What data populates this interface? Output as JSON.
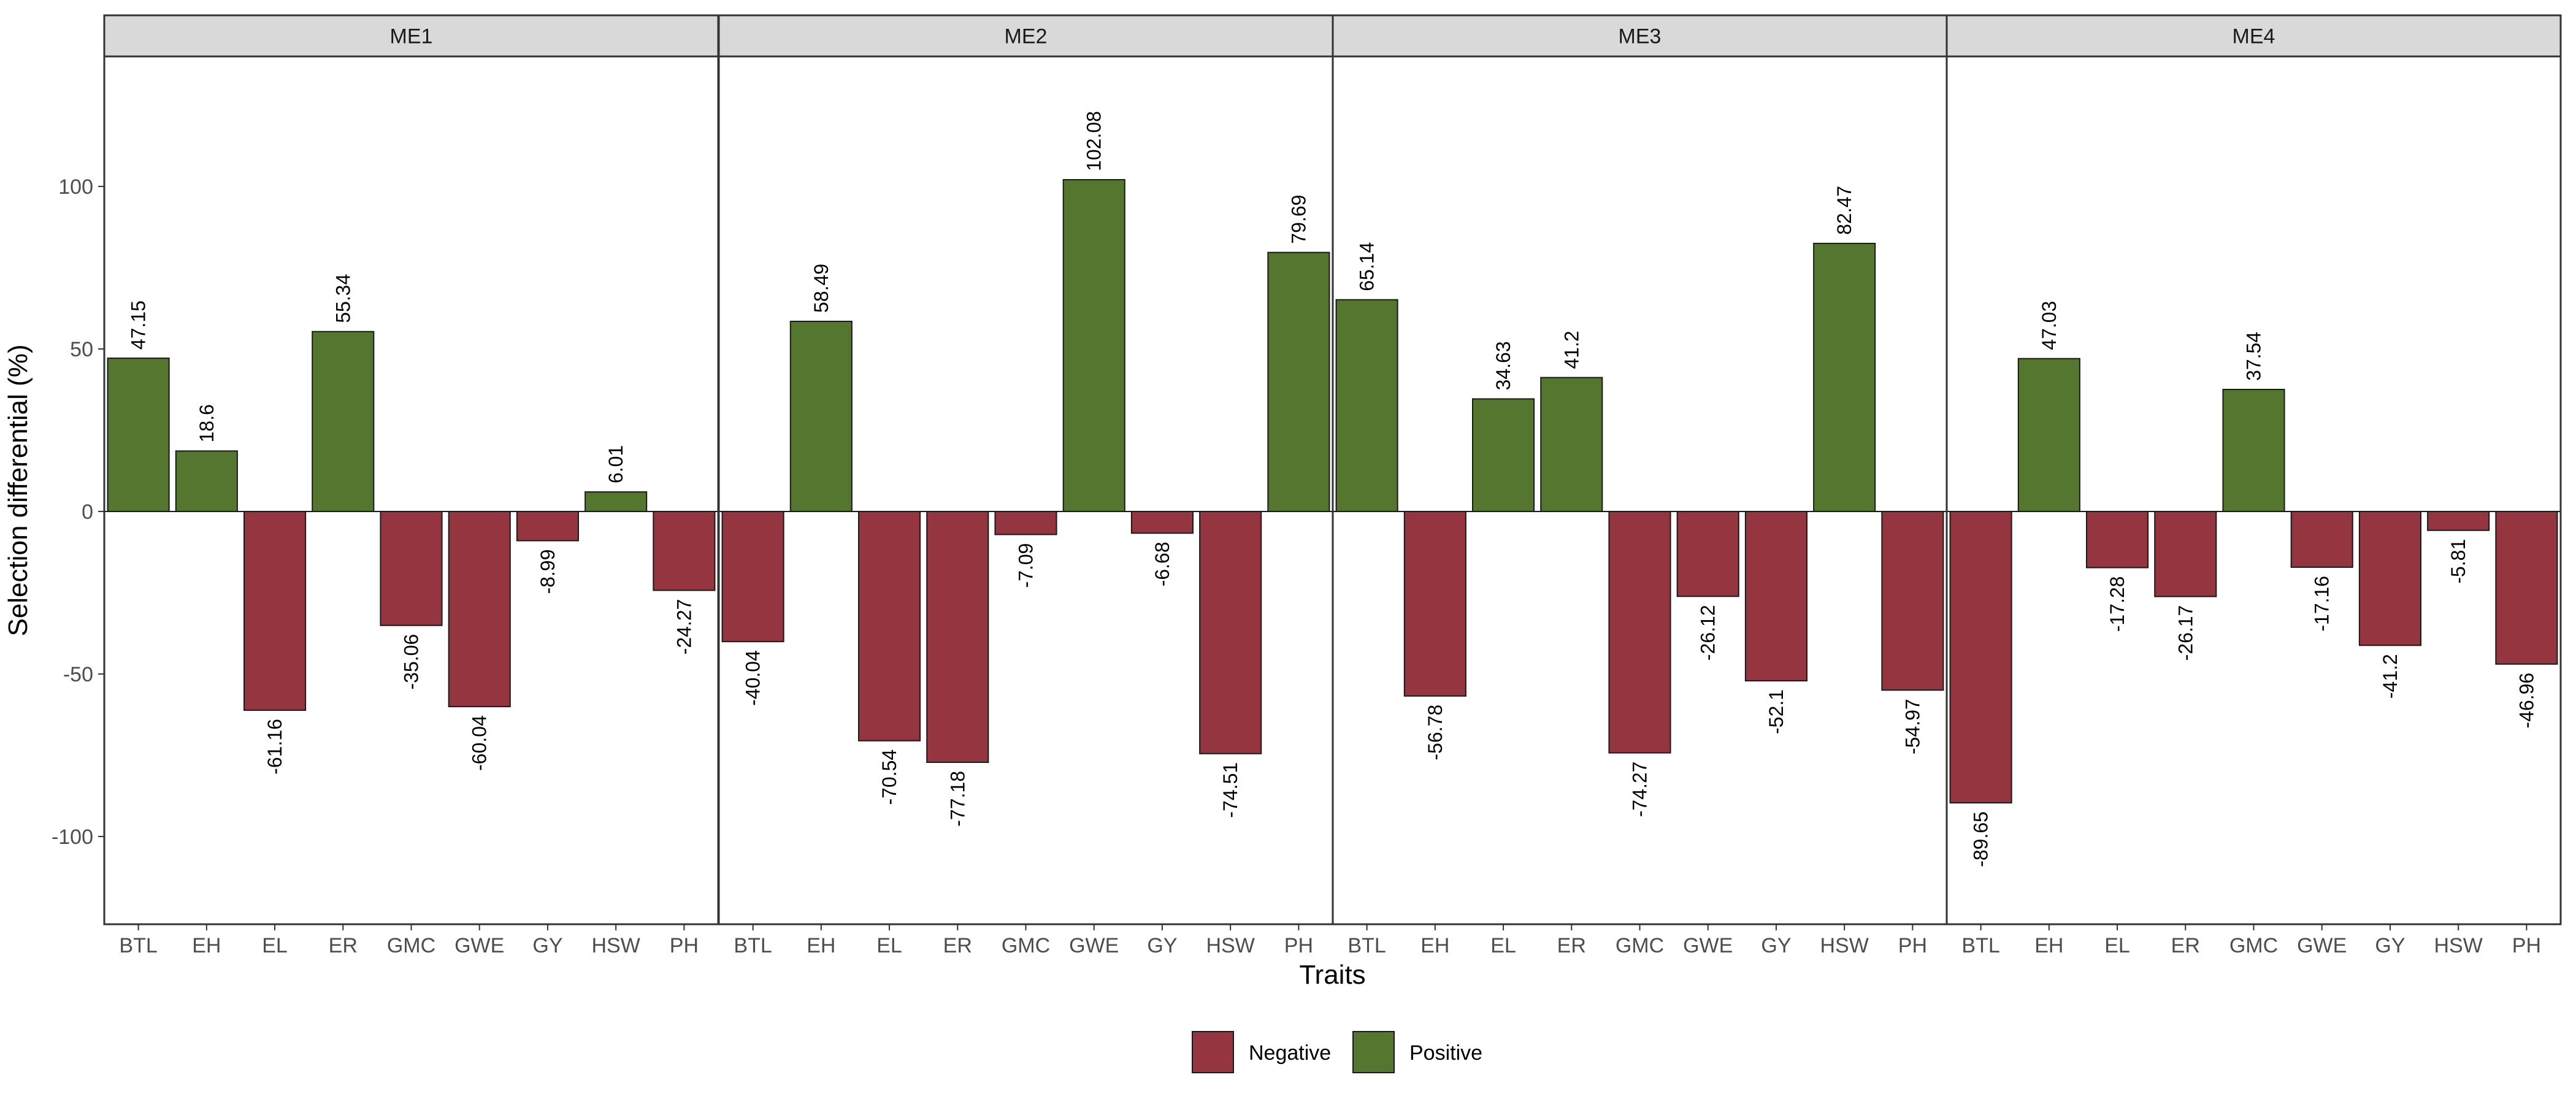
{
  "chart_data": {
    "type": "bar",
    "facets": [
      "ME1",
      "ME2",
      "ME3",
      "ME4"
    ],
    "categories": [
      "BTL",
      "EH",
      "EL",
      "ER",
      "GMC",
      "GWE",
      "GY",
      "HSW",
      "PH"
    ],
    "panels": [
      {
        "name": "ME1",
        "values": [
          47.15,
          18.6,
          -61.16,
          55.34,
          -35.06,
          -60.04,
          -8.99,
          6.01,
          -24.27
        ]
      },
      {
        "name": "ME2",
        "values": [
          -40.04,
          58.49,
          -70.54,
          -77.18,
          -7.09,
          102.08,
          -6.68,
          -74.51,
          79.69
        ]
      },
      {
        "name": "ME3",
        "values": [
          65.14,
          -56.78,
          34.63,
          41.2,
          -74.27,
          -26.12,
          -52.1,
          82.47,
          -54.97
        ]
      },
      {
        "name": "ME4",
        "values": [
          -89.65,
          47.03,
          -17.28,
          -26.17,
          37.54,
          -17.16,
          -41.2,
          -5.81,
          -46.96
        ]
      }
    ],
    "xlabel": "Traits",
    "ylabel": "Selection differential (%)",
    "ylim": [
      -127,
      140
    ],
    "yticks": [
      -100,
      -50,
      0,
      50,
      100
    ],
    "grid": false,
    "legend": {
      "placement": "bottom",
      "entries": [
        {
          "label": "Negative",
          "color": "#943540"
        },
        {
          "label": "Positive",
          "color": "#55762f"
        }
      ]
    }
  }
}
